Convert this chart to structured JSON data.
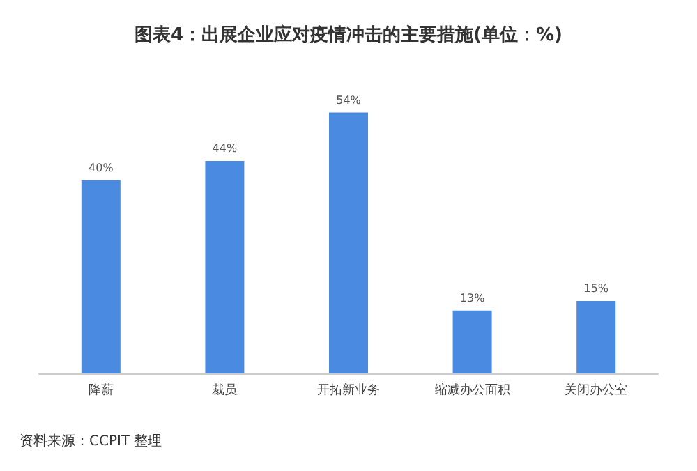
{
  "chart_data": {
    "type": "bar",
    "title": "图表4：出展企业应对疫情冲击的主要措施(单位：%)",
    "categories": [
      "降薪",
      "裁员",
      "开拓新业务",
      "缩减办公面积",
      "关闭办公室"
    ],
    "values": [
      40,
      44,
      54,
      13,
      15
    ],
    "value_labels": [
      "40%",
      "44%",
      "54%",
      "13%",
      "15%"
    ],
    "color": "#4a8ae0",
    "annotations": [
      "资料来源：CCPIT 整理"
    ]
  }
}
